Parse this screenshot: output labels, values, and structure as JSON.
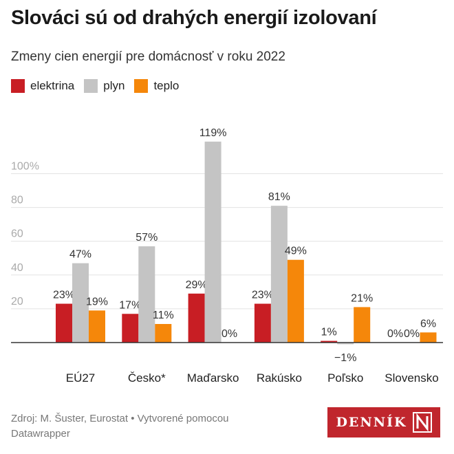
{
  "title": "Slováci sú od drahých energií izolovaní",
  "subtitle": "Zmeny cien energií pre domácnosť v roku 2022",
  "legend": [
    {
      "name": "elektrina",
      "color": "#c81e24"
    },
    {
      "name": "plyn",
      "color": "#c4c4c4"
    },
    {
      "name": "teplo",
      "color": "#f5870a"
    }
  ],
  "footer": {
    "source": "Zdroj: M. Šuster, Eurostat • Vytvorené pomocou Datawrapper"
  },
  "logo": {
    "text": "DENNÍK",
    "mark_icon": "n-logo-icon"
  },
  "chart_data": {
    "type": "bar",
    "title": "Slováci sú od drahých energií izolovaní",
    "subtitle": "Zmeny cien energií pre domácnosť v roku 2022",
    "categories": [
      "EÚ27",
      "Česko*",
      "Maďarsko",
      "Rakúsko",
      "Poľsko",
      "Slovensko"
    ],
    "series": [
      {
        "name": "elektrina",
        "color": "#c81e24",
        "values": [
          23,
          17,
          29,
          23,
          1,
          0
        ],
        "labels": [
          "23%",
          "17%",
          "29%",
          "23%",
          "1%",
          "0%"
        ]
      },
      {
        "name": "plyn",
        "color": "#c4c4c4",
        "values": [
          47,
          57,
          119,
          81,
          -1,
          0
        ],
        "labels": [
          "47%",
          "57%",
          "119%",
          "81%",
          "−1%",
          "0%"
        ]
      },
      {
        "name": "teplo",
        "color": "#f5870a",
        "values": [
          19,
          11,
          0,
          49,
          21,
          6
        ],
        "labels": [
          "19%",
          "11%",
          "0%",
          "49%",
          "21%",
          "6%"
        ]
      }
    ],
    "y_ticks": [
      {
        "value": 20,
        "label": "20"
      },
      {
        "value": 40,
        "label": "40"
      },
      {
        "value": 60,
        "label": "60"
      },
      {
        "value": 80,
        "label": "80"
      },
      {
        "value": 100,
        "label": "100%"
      }
    ],
    "ylim": [
      -2,
      120
    ],
    "grid": true,
    "legend_position": "top-left"
  }
}
